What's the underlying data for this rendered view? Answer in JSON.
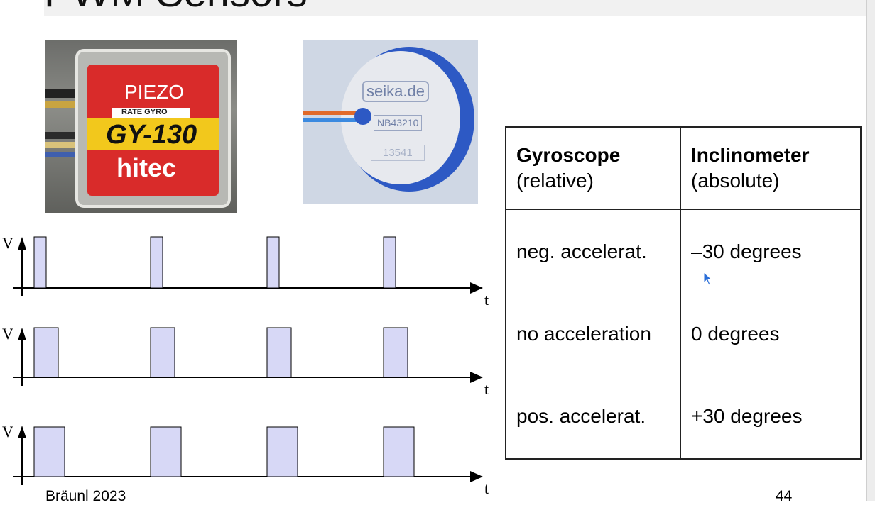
{
  "slide": {
    "title": "PWM Sensors",
    "footer_author": "Bräunl 2023",
    "page_number": "44"
  },
  "photos": {
    "gyro": {
      "label_piezo": "PIEZO",
      "label_rate": "RATE GYRO",
      "label_model": "GY-130",
      "label_brand": "hitec"
    },
    "inclinometer": {
      "label_brand": "seika.de",
      "label_model": "NB43210",
      "label_serial": "13541"
    }
  },
  "signals": {
    "v_label": "V",
    "t_label": "t"
  },
  "table": {
    "col1_title": "Gyroscope",
    "col1_sub": "(relative)",
    "col2_title": "Inclinometer",
    "col2_sub": "(absolute)",
    "rows": [
      {
        "gyro": "neg. accelerat.",
        "incl": "–30 degrees"
      },
      {
        "gyro": "no acceleration",
        "incl": "0 degrees"
      },
      {
        "gyro": "pos. accelerat.",
        "incl": "+30 degrees"
      }
    ]
  }
}
